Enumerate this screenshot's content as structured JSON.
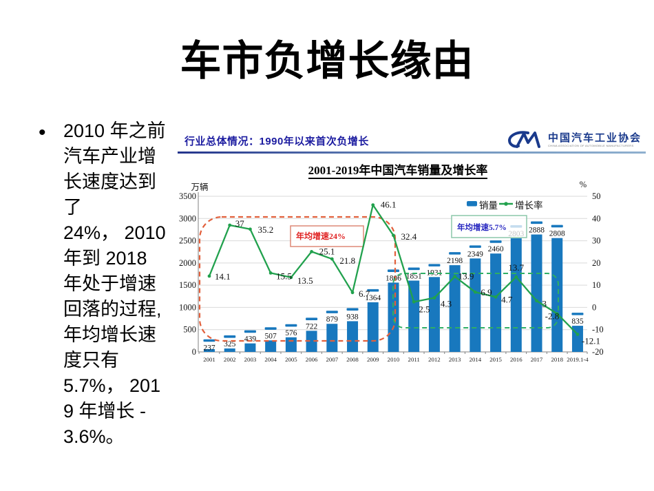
{
  "slide": {
    "title": "车市负增长缘由",
    "bullet_marker": "•",
    "bullet_text": "2010 年之前\n汽车产业增\n长速度达到\n了\n24%， 2010\n年到 2018\n年处于增速\n回落的过程,\n年均增长速\n度只有\n5.7%， 201\n9 年增长 -\n3.6%。"
  },
  "chart_panel": {
    "header": "行业总体情况：1990年以来首次负增长",
    "logo": {
      "monogram": "CM",
      "org_cn": "中国汽车工业协会",
      "org_en": "CHINA ASSOCIATION OF AUTOMOBILE MANUFACTURERS",
      "color": "#1a3a8c"
    }
  },
  "chart_data": {
    "type": "bar+line",
    "title": "2001-2019年中国汽车销量及增长率",
    "categories": [
      "2001",
      "2002",
      "2003",
      "2004",
      "2005",
      "2006",
      "2007",
      "2008",
      "2009",
      "2010",
      "2011",
      "2012",
      "2013",
      "2014",
      "2015",
      "2016",
      "2017",
      "2018",
      "2019.1-4"
    ],
    "series": [
      {
        "name": "销量",
        "type": "bar",
        "unit": "万辆",
        "color": "#1878be",
        "values": [
          237,
          325,
          439,
          507,
          576,
          722,
          879,
          938,
          1364,
          1806,
          1851,
          1931,
          2198,
          2349,
          2460,
          2803,
          2888,
          2808,
          835
        ]
      },
      {
        "name": "增长率",
        "type": "line",
        "unit": "%",
        "color": "#21a14d",
        "values": [
          14.1,
          37,
          35.2,
          15.5,
          13.5,
          25.1,
          21.8,
          6.7,
          46.1,
          32.4,
          2.5,
          4.3,
          13.9,
          6.9,
          4.7,
          13.7,
          3,
          -2.8,
          -12.1
        ]
      }
    ],
    "axis_left": {
      "label": "万辆",
      "min": 0,
      "max": 3500,
      "step": 500
    },
    "axis_right": {
      "label": "%",
      "min": -20,
      "max": 50,
      "step": 10
    },
    "grid": true,
    "legend_position": "top-right",
    "annotations": [
      {
        "text": "年均增速24%",
        "text_color": "#e02222",
        "box_border": "#dd8877",
        "region_color": "#e2603c",
        "period": "2001-2010"
      },
      {
        "text": "年均增速5.7%",
        "text_color": "#2525c0",
        "box_border": "#8cc7aa",
        "region_color": "#2fae64",
        "period": "2010-2018"
      }
    ]
  }
}
